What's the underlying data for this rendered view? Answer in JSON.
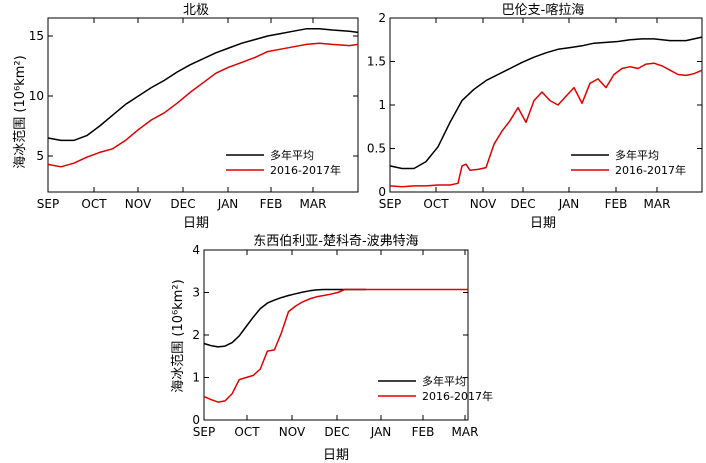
{
  "chart_data": [
    {
      "type": "line",
      "title": "北极",
      "xlabel": "日期",
      "ylabel": "海冰范围 (10⁶km²)",
      "x_ticks": [
        "SEP",
        "OCT",
        "NOV",
        "DEC",
        "JAN",
        "FEB",
        "MAR"
      ],
      "xlim": [
        0,
        7.2
      ],
      "ylim": [
        2,
        16.5
      ],
      "y_ticks": [
        5,
        10,
        15
      ],
      "legend_position": "bottom-right",
      "series": [
        {
          "name": "多年平均",
          "color": "#000000",
          "x": [
            0,
            0.3,
            0.6,
            0.9,
            1.2,
            1.5,
            1.8,
            2.1,
            2.4,
            2.7,
            3.0,
            3.3,
            3.6,
            3.9,
            4.2,
            4.5,
            4.8,
            5.1,
            5.4,
            5.7,
            6.0,
            6.3,
            6.6,
            7.0,
            7.2
          ],
          "values": [
            6.5,
            6.3,
            6.3,
            6.7,
            7.5,
            8.4,
            9.3,
            10.0,
            10.7,
            11.3,
            12.0,
            12.6,
            13.1,
            13.6,
            14.0,
            14.4,
            14.7,
            15.0,
            15.2,
            15.4,
            15.6,
            15.6,
            15.5,
            15.4,
            15.3
          ]
        },
        {
          "name": "2016-2017年",
          "color": "#e00000",
          "x": [
            0,
            0.3,
            0.6,
            0.9,
            1.2,
            1.5,
            1.8,
            2.1,
            2.4,
            2.7,
            3.0,
            3.3,
            3.6,
            3.9,
            4.2,
            4.5,
            4.8,
            5.1,
            5.4,
            5.7,
            6.0,
            6.3,
            6.6,
            7.0,
            7.2
          ],
          "values": [
            4.3,
            4.1,
            4.4,
            4.9,
            5.3,
            5.6,
            6.3,
            7.2,
            8.0,
            8.6,
            9.4,
            10.3,
            11.1,
            11.9,
            12.4,
            12.8,
            13.2,
            13.7,
            13.9,
            14.1,
            14.3,
            14.4,
            14.3,
            14.2,
            14.3
          ]
        }
      ]
    },
    {
      "type": "line",
      "title": "巴伦支-喀拉海",
      "xlabel": "日期",
      "ylabel": "",
      "x_ticks": [
        "SEP",
        "OCT",
        "NOV",
        "DEC",
        "JAN",
        "FEB",
        "MAR"
      ],
      "xlim": [
        0,
        7.8
      ],
      "ylim": [
        0,
        2
      ],
      "y_ticks": [
        0,
        0.5,
        1,
        1.5,
        2
      ],
      "legend_position": "bottom-right",
      "series": [
        {
          "name": "多年平均",
          "color": "#000000",
          "x": [
            0,
            0.3,
            0.6,
            0.9,
            1.2,
            1.5,
            1.8,
            2.1,
            2.4,
            2.7,
            3.0,
            3.3,
            3.6,
            3.9,
            4.2,
            4.5,
            4.8,
            5.1,
            5.4,
            5.7,
            6.0,
            6.3,
            6.6,
            7.0,
            7.4,
            7.8
          ],
          "values": [
            0.3,
            0.27,
            0.27,
            0.35,
            0.52,
            0.8,
            1.05,
            1.18,
            1.28,
            1.35,
            1.42,
            1.49,
            1.55,
            1.6,
            1.64,
            1.66,
            1.68,
            1.71,
            1.72,
            1.73,
            1.75,
            1.76,
            1.76,
            1.74,
            1.74,
            1.78
          ]
        },
        {
          "name": "2016-2017年",
          "color": "#e00000",
          "x": [
            0,
            0.3,
            0.6,
            0.9,
            1.2,
            1.5,
            1.7,
            1.8,
            1.9,
            2.0,
            2.2,
            2.4,
            2.6,
            2.8,
            3.0,
            3.2,
            3.4,
            3.6,
            3.8,
            4.0,
            4.2,
            4.4,
            4.6,
            4.8,
            5.0,
            5.2,
            5.4,
            5.6,
            5.8,
            6.0,
            6.2,
            6.4,
            6.6,
            6.8,
            7.0,
            7.2,
            7.4,
            7.6,
            7.8
          ],
          "values": [
            0.07,
            0.06,
            0.07,
            0.07,
            0.08,
            0.08,
            0.1,
            0.3,
            0.32,
            0.25,
            0.26,
            0.28,
            0.55,
            0.7,
            0.82,
            0.97,
            0.8,
            1.05,
            1.15,
            1.05,
            1.0,
            1.1,
            1.2,
            1.02,
            1.25,
            1.3,
            1.2,
            1.35,
            1.42,
            1.44,
            1.42,
            1.47,
            1.48,
            1.45,
            1.4,
            1.35,
            1.34,
            1.36,
            1.4
          ]
        }
      ]
    },
    {
      "type": "line",
      "title": "东西伯利亚-楚科奇-波弗特海",
      "xlabel": "日期",
      "ylabel": "海冰范围 (10⁶km²)",
      "x_ticks": [
        "SEP",
        "OCT",
        "NOV",
        "DEC",
        "JAN",
        "FEB",
        "MAR"
      ],
      "xlim": [
        0,
        7.5
      ],
      "ylim": [
        0,
        4
      ],
      "y_ticks": [
        0,
        1,
        2,
        3,
        4
      ],
      "legend_position": "bottom-right",
      "series": [
        {
          "name": "多年平均",
          "color": "#000000",
          "x": [
            0,
            0.2,
            0.4,
            0.6,
            0.8,
            1.0,
            1.2,
            1.4,
            1.6,
            1.8,
            2.0,
            2.2,
            2.4,
            2.6,
            2.8,
            3.0,
            3.2,
            3.4,
            3.6,
            3.8,
            4.0,
            4.3,
            4.6
          ],
          "values": [
            1.8,
            1.75,
            1.72,
            1.74,
            1.82,
            1.98,
            2.2,
            2.42,
            2.62,
            2.75,
            2.82,
            2.88,
            2.93,
            2.97,
            3.01,
            3.04,
            3.06,
            3.07,
            3.07,
            3.07,
            3.07,
            3.07,
            3.07
          ]
        },
        {
          "name": "2016-2017年",
          "color": "#e00000",
          "x": [
            0,
            0.2,
            0.4,
            0.6,
            0.8,
            1.0,
            1.2,
            1.4,
            1.6,
            1.8,
            2.0,
            2.2,
            2.4,
            2.6,
            2.8,
            3.0,
            3.2,
            3.4,
            3.6,
            3.8,
            4.0,
            4.3,
            4.6,
            5.0,
            5.5,
            6.0,
            6.5,
            7.0,
            7.5
          ],
          "values": [
            0.55,
            0.48,
            0.42,
            0.45,
            0.62,
            0.95,
            1.0,
            1.05,
            1.2,
            1.62,
            1.65,
            2.05,
            2.55,
            2.68,
            2.78,
            2.85,
            2.9,
            2.93,
            2.96,
            3.0,
            3.07,
            3.07,
            3.07,
            3.07,
            3.07,
            3.07,
            3.07,
            3.07,
            3.07
          ]
        }
      ]
    }
  ]
}
